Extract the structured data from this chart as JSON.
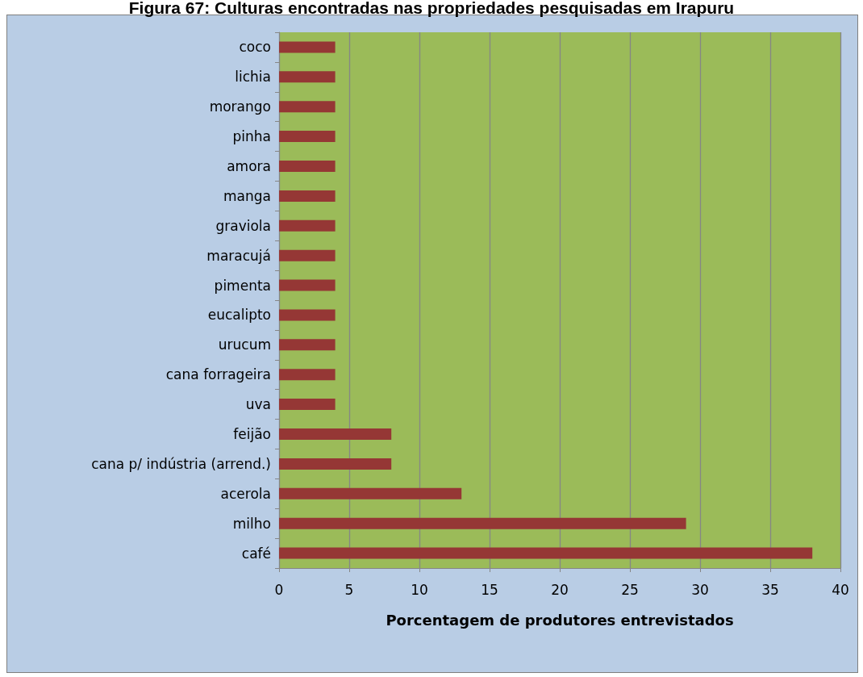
{
  "chart_data": {
    "type": "bar",
    "orientation": "horizontal",
    "title": "Figura 67: Culturas encontradas nas propriedades pesquisadas em Irapuru",
    "xlabel": "Porcentagem de produtores entrevistados",
    "categories": [
      "coco",
      "lichia",
      "morango",
      "pinha",
      "amora",
      "manga",
      "graviola",
      "maracujá",
      "pimenta",
      "eucalipto",
      "urucum",
      "cana forrageira",
      "uva",
      "feijão",
      "cana p/ indústria (arrend.)",
      "acerola",
      "milho",
      "café"
    ],
    "values": [
      4,
      4,
      4,
      4,
      4,
      4,
      4,
      4,
      4,
      4,
      4,
      4,
      4,
      8,
      8,
      13,
      29,
      38
    ],
    "color": "#953735",
    "xlim": [
      0,
      40
    ],
    "xticks": [
      0,
      5,
      10,
      15,
      20,
      25,
      30,
      35,
      40
    ],
    "grid": "x"
  }
}
